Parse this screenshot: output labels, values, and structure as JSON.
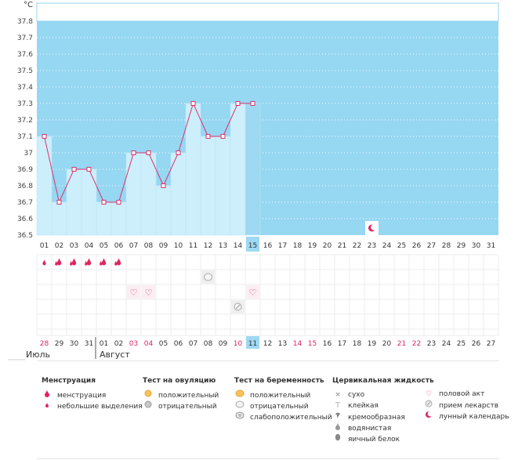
{
  "chart_data": {
    "type": "bar",
    "unit": "°C",
    "y_ticks": [
      "37.8",
      "37.7",
      "37.6",
      "37.5",
      "37.4",
      "37.3",
      "37.2",
      "37.1",
      "37",
      "36.9",
      "36.8",
      "36.7",
      "36.6",
      "36.5"
    ],
    "ylim": [
      36.5,
      37.8
    ],
    "cycle_days": [
      "01",
      "02",
      "03",
      "04",
      "05",
      "06",
      "07",
      "08",
      "09",
      "10",
      "11",
      "12",
      "13",
      "14",
      "15",
      "16",
      "17",
      "18",
      "19",
      "20",
      "21",
      "22",
      "23",
      "24",
      "25",
      "26",
      "27",
      "28",
      "29",
      "30",
      "31"
    ],
    "temperatures": [
      37.1,
      36.7,
      36.9,
      36.9,
      36.7,
      36.7,
      37.0,
      37.0,
      36.8,
      37.0,
      37.3,
      37.1,
      37.1,
      37.3,
      37.3
    ],
    "current_day_index": 14,
    "lunar_marker_day_index": 22,
    "dates": [
      "28",
      "29",
      "30",
      "31",
      "01",
      "02",
      "03",
      "04",
      "05",
      "06",
      "07",
      "08",
      "09",
      "10",
      "11",
      "12",
      "13",
      "14",
      "15",
      "16",
      "17",
      "18",
      "19",
      "20",
      "21",
      "22",
      "23",
      "24",
      "25",
      "26",
      "27"
    ],
    "red_date_indices": [
      0,
      6,
      7,
      13,
      17,
      18,
      24,
      25
    ],
    "date_separator_index": 4,
    "events": {
      "menstruation_heavy": [
        1,
        2,
        3,
        4,
        5
      ],
      "menstruation_light": [
        0
      ],
      "pregnancy_test_negative": [
        11
      ],
      "intercourse": [
        6,
        7,
        14
      ],
      "medication": [
        13
      ]
    },
    "colors": {
      "band": "#96d7f2",
      "bar": "#cdeefb",
      "bar_current": "#9ed8f3",
      "line": "#d8336e",
      "accent": "#e0245e",
      "grid_dot": "#ffffff",
      "grid_line": "#ececec"
    }
  },
  "months": {
    "july": "Июль",
    "august": "Август"
  },
  "legend": {
    "menstruation": {
      "title": "Менструация",
      "items": [
        {
          "icon": "menstruation-icon",
          "label": "менструация"
        },
        {
          "icon": "spotting-icon",
          "label": "небольшие выделения"
        }
      ]
    },
    "ovulation_test": {
      "title": "Тест на овуляцию",
      "items": [
        {
          "icon": "ovulation-positive-icon",
          "label": "положительный"
        },
        {
          "icon": "ovulation-negative-icon",
          "label": "отрицательный"
        }
      ]
    },
    "pregnancy_test": {
      "title": "Тест на беременность",
      "items": [
        {
          "icon": "pregnancy-positive-icon",
          "label": "положительный"
        },
        {
          "icon": "pregnancy-negative-icon",
          "label": "отрицательный"
        },
        {
          "icon": "pregnancy-weak-icon",
          "label": "слабоположительный"
        }
      ]
    },
    "cervical_fluid": {
      "title": "Цервикальная жидкость",
      "items": [
        {
          "icon": "dry-icon",
          "label": "сухо"
        },
        {
          "icon": "sticky-icon",
          "label": "клейкая"
        },
        {
          "icon": "creamy-icon",
          "label": "кремообразная"
        },
        {
          "icon": "watery-icon",
          "label": "водянистая"
        },
        {
          "icon": "egg-white-icon",
          "label": "яичный белок"
        }
      ]
    },
    "other": {
      "items": [
        {
          "icon": "heart-icon",
          "label": "половой акт"
        },
        {
          "icon": "pill-icon",
          "label": "прием лекарств"
        },
        {
          "icon": "moon-icon",
          "label": "лунный календарь"
        }
      ]
    }
  }
}
